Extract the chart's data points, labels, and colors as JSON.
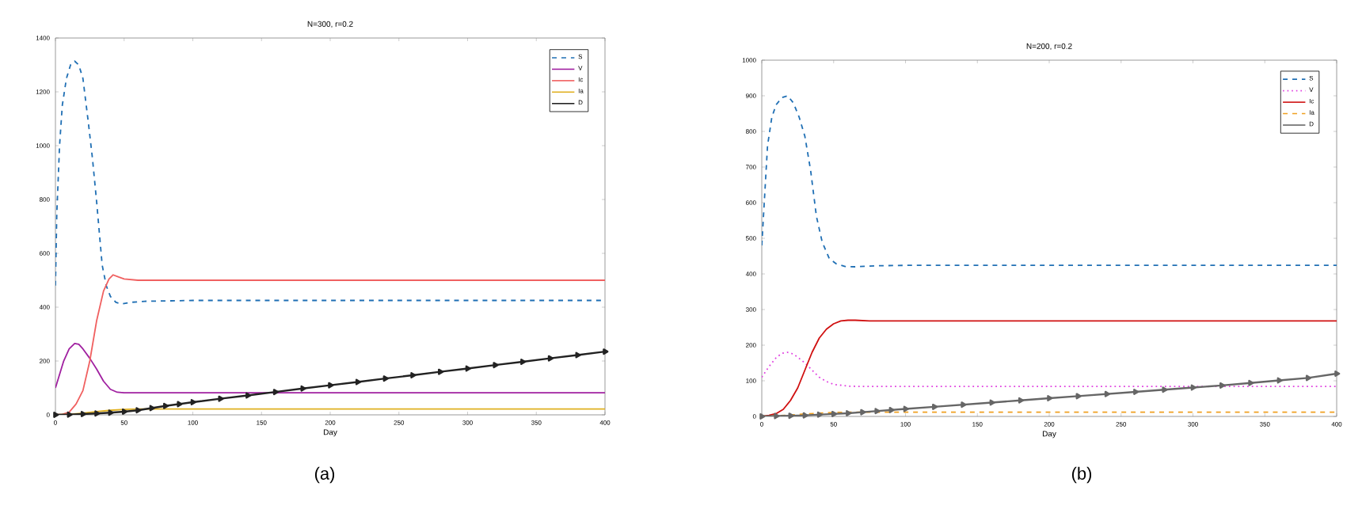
{
  "chart_data": [
    {
      "type": "line",
      "title": "N=300, r=0.2",
      "xlabel": "Day",
      "annotations": [
        "(a)"
      ],
      "xlim": [
        0,
        400
      ],
      "ylim": [
        0,
        1400
      ],
      "xticks": [
        0,
        50,
        100,
        150,
        200,
        250,
        300,
        350,
        400
      ],
      "yticks": [
        0,
        200,
        400,
        600,
        800,
        1000,
        1200,
        1400
      ],
      "grid": false,
      "legend": "top right",
      "series": [
        {
          "name": "S",
          "color": "#1f6fb4",
          "line_style": "dashed",
          "x": [
            0,
            1,
            3,
            5,
            8,
            11,
            14,
            17,
            20,
            24,
            27,
            30,
            34,
            37,
            40,
            44,
            48,
            55,
            65,
            100,
            200,
            300,
            400
          ],
          "values": [
            480,
            750,
            1000,
            1150,
            1250,
            1300,
            1314,
            1300,
            1250,
            1084,
            950,
            791,
            557,
            480,
            440,
            418,
            412,
            418,
            422,
            425,
            425,
            425,
            425
          ]
        },
        {
          "name": "V",
          "color": "#a020a0",
          "line_style": "solid",
          "x": [
            0,
            3,
            6,
            10,
            14,
            17,
            20,
            25,
            30,
            35,
            40,
            45,
            50,
            60,
            100,
            200,
            300,
            400
          ],
          "values": [
            100,
            150,
            200,
            245,
            265,
            262,
            245,
            210,
            170,
            125,
            95,
            84,
            82,
            82,
            82,
            82,
            82,
            82
          ]
        },
        {
          "name": "Ic",
          "color": "#f06060",
          "line_style": "solid",
          "x": [
            0,
            5,
            10,
            15,
            20,
            25,
            30,
            35,
            39,
            42,
            46,
            50,
            60,
            100,
            200,
            300,
            400
          ],
          "values": [
            0,
            2,
            10,
            40,
            90,
            200,
            350,
            460,
            505,
            520,
            512,
            505,
            500,
            500,
            500,
            500,
            500
          ]
        },
        {
          "name": "Ia",
          "color": "#e0b020",
          "line_style": "solid",
          "x": [
            0,
            10,
            20,
            30,
            40,
            50,
            60,
            100,
            200,
            300,
            400
          ],
          "values": [
            0,
            2,
            6,
            12,
            17,
            20,
            22,
            22,
            22,
            22,
            22
          ]
        },
        {
          "name": "D",
          "color": "#222222",
          "line_style": "solid",
          "marker": "triangle",
          "x": [
            0,
            10,
            20,
            30,
            40,
            50,
            60,
            70,
            80,
            90,
            100,
            120,
            140,
            160,
            180,
            200,
            220,
            240,
            260,
            280,
            300,
            320,
            340,
            360,
            380,
            400
          ],
          "values": [
            0,
            1,
            3,
            5,
            8,
            12,
            17,
            25,
            33,
            40,
            47,
            60,
            72,
            85,
            98,
            110,
            122,
            135,
            147,
            160,
            172,
            185,
            197,
            210,
            222,
            235
          ]
        }
      ]
    },
    {
      "type": "line",
      "title": "N=200, r=0.2",
      "xlabel": "Day",
      "annotations": [
        "(b)"
      ],
      "xlim": [
        0,
        400
      ],
      "ylim": [
        0,
        1000
      ],
      "xticks": [
        0,
        50,
        100,
        150,
        200,
        250,
        300,
        350,
        400
      ],
      "yticks": [
        0,
        100,
        200,
        300,
        400,
        500,
        600,
        700,
        800,
        900,
        1000
      ],
      "grid": false,
      "legend": "top right",
      "series": [
        {
          "name": "S",
          "color": "#1f6fb4",
          "line_style": "dashed",
          "x": [
            0,
            2,
            4,
            7,
            10,
            14,
            18,
            22,
            26,
            30,
            34,
            38,
            42,
            47,
            52,
            58,
            65,
            80,
            100,
            200,
            300,
            400
          ],
          "values": [
            480,
            620,
            760,
            840,
            875,
            895,
            900,
            880,
            840,
            786,
            690,
            562,
            490,
            443,
            428,
            421,
            420,
            423,
            424,
            424,
            424,
            424
          ]
        },
        {
          "name": "V",
          "color": "#e040e0",
          "line_style": "dotted",
          "x": [
            0,
            5,
            10,
            14,
            18,
            22,
            26,
            30,
            35,
            40,
            45,
            50,
            60,
            70,
            100,
            200,
            300,
            400
          ],
          "values": [
            110,
            140,
            165,
            177,
            180,
            175,
            163,
            150,
            130,
            110,
            98,
            90,
            85,
            84,
            84,
            84,
            84,
            84
          ]
        },
        {
          "name": "Ic",
          "color": "#d01010",
          "line_style": "solid",
          "x": [
            0,
            5,
            10,
            15,
            20,
            25,
            30,
            35,
            40,
            45,
            50,
            55,
            60,
            65,
            75,
            100,
            200,
            300,
            400
          ],
          "values": [
            0,
            3,
            8,
            20,
            45,
            80,
            130,
            180,
            220,
            245,
            260,
            268,
            270,
            270,
            268,
            268,
            268,
            268,
            268
          ]
        },
        {
          "name": "Ia",
          "color": "#f0a020",
          "line_style": "dashed",
          "x": [
            0,
            10,
            20,
            30,
            40,
            50,
            60,
            100,
            200,
            300,
            400
          ],
          "values": [
            0,
            2,
            4,
            7,
            9,
            11,
            12,
            12,
            12,
            12,
            12
          ]
        },
        {
          "name": "D",
          "color": "#666666",
          "line_style": "solid",
          "marker": "triangle",
          "x": [
            0,
            10,
            20,
            30,
            40,
            50,
            60,
            70,
            80,
            90,
            100,
            120,
            140,
            160,
            180,
            200,
            220,
            240,
            260,
            280,
            300,
            320,
            340,
            360,
            380,
            400
          ],
          "values": [
            0,
            1,
            2,
            3,
            5,
            7,
            9,
            12,
            15,
            18,
            21,
            27,
            33,
            39,
            45,
            51,
            57,
            63,
            69,
            75,
            81,
            87,
            94,
            101,
            108,
            120
          ]
        }
      ]
    }
  ]
}
